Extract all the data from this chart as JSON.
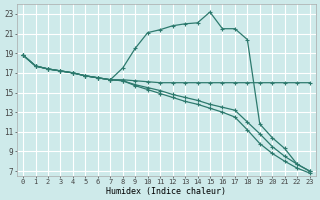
{
  "xlabel": "Humidex (Indice chaleur)",
  "background_color": "#ceeaea",
  "grid_color": "#ffffff",
  "line_color": "#2d7a6e",
  "xlim": [
    -0.5,
    23.5
  ],
  "ylim": [
    6.5,
    24.0
  ],
  "xticks": [
    0,
    1,
    2,
    3,
    4,
    5,
    6,
    7,
    8,
    9,
    10,
    11,
    12,
    13,
    14,
    15,
    16,
    17,
    18,
    19,
    20,
    21,
    22,
    23
  ],
  "yticks": [
    7,
    9,
    11,
    13,
    15,
    17,
    19,
    21,
    23
  ],
  "line1_x": [
    0,
    1,
    2,
    3,
    4,
    5,
    6,
    7,
    8,
    9,
    10,
    11,
    12,
    13,
    14,
    15,
    16,
    17,
    18,
    19,
    20,
    21,
    22,
    23
  ],
  "line1_y": [
    18.8,
    17.7,
    17.4,
    17.2,
    17.0,
    16.7,
    16.5,
    16.3,
    16.3,
    16.2,
    16.1,
    16.0,
    16.0,
    16.0,
    16.0,
    16.0,
    16.0,
    16.0,
    16.0,
    16.0,
    16.0,
    16.0,
    16.0,
    16.0
  ],
  "line2_x": [
    0,
    1,
    2,
    3,
    4,
    5,
    6,
    7,
    8,
    9,
    10,
    11,
    12,
    13,
    14,
    15,
    16,
    17,
    18,
    19,
    20,
    21,
    22,
    23
  ],
  "line2_y": [
    18.8,
    17.7,
    17.4,
    17.2,
    17.0,
    16.7,
    16.5,
    16.3,
    17.5,
    19.5,
    21.1,
    21.4,
    21.8,
    22.0,
    22.1,
    23.2,
    21.5,
    21.5,
    20.4,
    11.8,
    10.4,
    9.3,
    7.7,
    7.0
  ],
  "line3_x": [
    0,
    1,
    2,
    3,
    4,
    5,
    6,
    7,
    8,
    9,
    10,
    11,
    12,
    13,
    14,
    15,
    16,
    17,
    18,
    19,
    20,
    21,
    22,
    23
  ],
  "line3_y": [
    18.8,
    17.7,
    17.4,
    17.2,
    17.0,
    16.7,
    16.5,
    16.3,
    16.2,
    15.8,
    15.5,
    15.2,
    14.8,
    14.5,
    14.2,
    13.8,
    13.5,
    13.2,
    12.0,
    10.8,
    9.5,
    8.5,
    7.7,
    7.0
  ],
  "line4_x": [
    0,
    1,
    2,
    3,
    4,
    5,
    6,
    7,
    8,
    9,
    10,
    11,
    12,
    13,
    14,
    15,
    16,
    17,
    18,
    19,
    20,
    21,
    22,
    23
  ],
  "line4_y": [
    18.8,
    17.7,
    17.4,
    17.2,
    17.0,
    16.7,
    16.5,
    16.3,
    16.2,
    15.7,
    15.3,
    14.9,
    14.5,
    14.1,
    13.8,
    13.4,
    13.0,
    12.5,
    11.2,
    9.8,
    8.8,
    8.0,
    7.3,
    6.8
  ]
}
